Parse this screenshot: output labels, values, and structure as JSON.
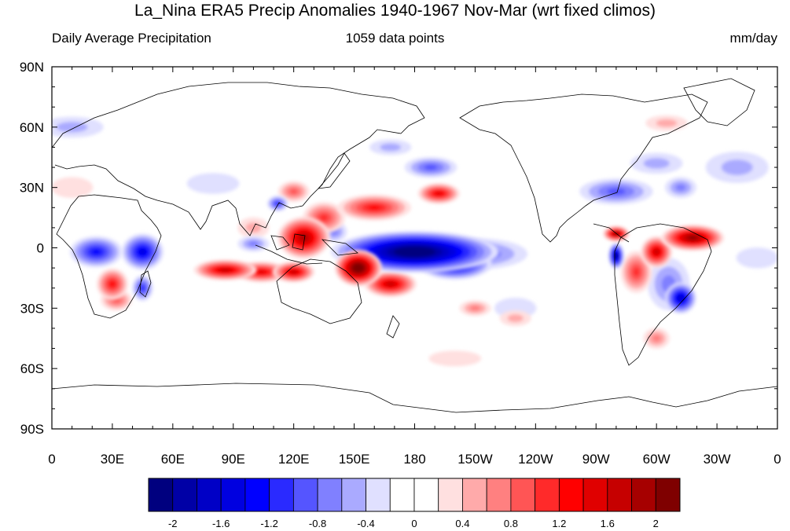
{
  "title": "La_Nina ERA5 Precip Anomalies 1940-1967 Nov-Mar (wrt fixed climos)",
  "subtitle_left": "Daily Average Precipitation",
  "subtitle_center": "1059 data points",
  "subtitle_right": "mm/day",
  "lat_labels": [
    "90N",
    "60N",
    "30N",
    "0",
    "30S",
    "60S",
    "90S"
  ],
  "lon_labels": [
    "0",
    "30E",
    "60E",
    "90E",
    "120E",
    "150E",
    "180",
    "150W",
    "120W",
    "90W",
    "60W",
    "30W",
    "0"
  ],
  "colorbar": {
    "colors": [
      "#00007f",
      "#0000a6",
      "#0000c6",
      "#0000e0",
      "#0000ff",
      "#2a2aff",
      "#5555ff",
      "#8080ff",
      "#aaaaff",
      "#e0e0ff",
      "#ffffff",
      "#ffffff",
      "#ffe0e0",
      "#ffaaaa",
      "#ff8080",
      "#ff5555",
      "#ff2a2a",
      "#ff0000",
      "#e00000",
      "#c60000",
      "#a60000",
      "#7f0000"
    ],
    "tick_labels": [
      "-2",
      "-1.6",
      "-1.2",
      "-0.8",
      "-0.4",
      "0",
      "0.4",
      "0.8",
      "1.2",
      "1.6",
      "2"
    ]
  },
  "anomalies": [
    {
      "lon": 180,
      "lat": -2,
      "sx": 32,
      "sy": 8,
      "value": -2.4
    },
    {
      "lon": 200,
      "lat": -8,
      "sx": 14,
      "sy": 6,
      "value": -1.6
    },
    {
      "lon": 210,
      "lat": -3,
      "sx": 20,
      "sy": 6,
      "value": -0.8
    },
    {
      "lon": 280,
      "lat": -4,
      "sx": 3,
      "sy": 5,
      "value": -2.0
    },
    {
      "lon": 312,
      "lat": -25,
      "sx": 6,
      "sy": 6,
      "value": -1.6
    },
    {
      "lon": 306,
      "lat": -18,
      "sx": 8,
      "sy": 10,
      "value": -0.6
    },
    {
      "lon": 22,
      "lat": -2,
      "sx": 10,
      "sy": 6,
      "value": -1.2
    },
    {
      "lon": 45,
      "lat": -2,
      "sx": 8,
      "sy": 7,
      "value": -1.4
    },
    {
      "lon": 45,
      "lat": -20,
      "sx": 4,
      "sy": 5,
      "value": -1.0
    },
    {
      "lon": 100,
      "lat": 2,
      "sx": 6,
      "sy": 3,
      "value": -0.6
    },
    {
      "lon": 112,
      "lat": 22,
      "sx": 4,
      "sy": 3,
      "value": -1.0
    },
    {
      "lon": 140,
      "lat": 8,
      "sx": 5,
      "sy": 4,
      "value": -0.6
    },
    {
      "lon": 188,
      "lat": 40,
      "sx": 10,
      "sy": 4,
      "value": -0.8
    },
    {
      "lon": 168,
      "lat": 50,
      "sx": 8,
      "sy": 3,
      "value": -0.4
    },
    {
      "lon": 280,
      "lat": 28,
      "sx": 14,
      "sy": 5,
      "value": -0.8
    },
    {
      "lon": 312,
      "lat": 30,
      "sx": 6,
      "sy": 4,
      "value": -0.6
    },
    {
      "lon": 300,
      "lat": 42,
      "sx": 10,
      "sy": 4,
      "value": -0.4
    },
    {
      "lon": 340,
      "lat": 40,
      "sx": 12,
      "sy": 6,
      "value": -0.4
    },
    {
      "lon": 10,
      "lat": 60,
      "sx": 12,
      "sy": 4,
      "value": -0.4
    },
    {
      "lon": 80,
      "lat": 32,
      "sx": 10,
      "sy": 4,
      "value": -0.3
    },
    {
      "lon": 350,
      "lat": -5,
      "sx": 8,
      "sy": 4,
      "value": -0.3
    },
    {
      "lon": 230,
      "lat": -30,
      "sx": 8,
      "sy": 4,
      "value": -0.3
    },
    {
      "lon": 125,
      "lat": 5,
      "sx": 10,
      "sy": 8,
      "value": 1.8
    },
    {
      "lon": 120,
      "lat": -12,
      "sx": 8,
      "sy": 4,
      "value": 1.6
    },
    {
      "lon": 86,
      "lat": -11,
      "sx": 12,
      "sy": 4,
      "value": 1.6
    },
    {
      "lon": 104,
      "lat": -12,
      "sx": 10,
      "sy": 4,
      "value": 1.4
    },
    {
      "lon": 152,
      "lat": -10,
      "sx": 9,
      "sy": 7,
      "value": 2.4
    },
    {
      "lon": 168,
      "lat": -18,
      "sx": 10,
      "sy": 5,
      "value": 1.6
    },
    {
      "lon": 160,
      "lat": 20,
      "sx": 14,
      "sy": 5,
      "value": 1.2
    },
    {
      "lon": 192,
      "lat": 27,
      "sx": 8,
      "sy": 4,
      "value": 1.4
    },
    {
      "lon": 135,
      "lat": 15,
      "sx": 8,
      "sy": 6,
      "value": 1.0
    },
    {
      "lon": 120,
      "lat": 28,
      "sx": 6,
      "sy": 4,
      "value": 0.8
    },
    {
      "lon": 280,
      "lat": 7,
      "sx": 5,
      "sy": 3,
      "value": 2.0
    },
    {
      "lon": 318,
      "lat": 5,
      "sx": 12,
      "sy": 5,
      "value": 2.0
    },
    {
      "lon": 300,
      "lat": -2,
      "sx": 6,
      "sy": 6,
      "value": 1.6
    },
    {
      "lon": 290,
      "lat": -12,
      "sx": 6,
      "sy": 8,
      "value": 1.0
    },
    {
      "lon": 30,
      "lat": -18,
      "sx": 6,
      "sy": 6,
      "value": 1.2
    },
    {
      "lon": 32,
      "lat": -26,
      "sx": 6,
      "sy": 4,
      "value": 0.8
    },
    {
      "lon": 210,
      "lat": -30,
      "sx": 6,
      "sy": 3,
      "value": 0.6
    },
    {
      "lon": 230,
      "lat": -35,
      "sx": 6,
      "sy": 3,
      "value": 0.4
    },
    {
      "lon": 300,
      "lat": -45,
      "sx": 5,
      "sy": 4,
      "value": 0.5
    },
    {
      "lon": 305,
      "lat": 62,
      "sx": 8,
      "sy": 3,
      "value": 0.4
    },
    {
      "lon": 10,
      "lat": 30,
      "sx": 8,
      "sy": 4,
      "value": 0.3
    },
    {
      "lon": 200,
      "lat": -55,
      "sx": 10,
      "sy": 3,
      "value": 0.3
    },
    {
      "lon": 100,
      "lat": 10,
      "sx": 6,
      "sy": 4,
      "value": 0.4
    }
  ]
}
